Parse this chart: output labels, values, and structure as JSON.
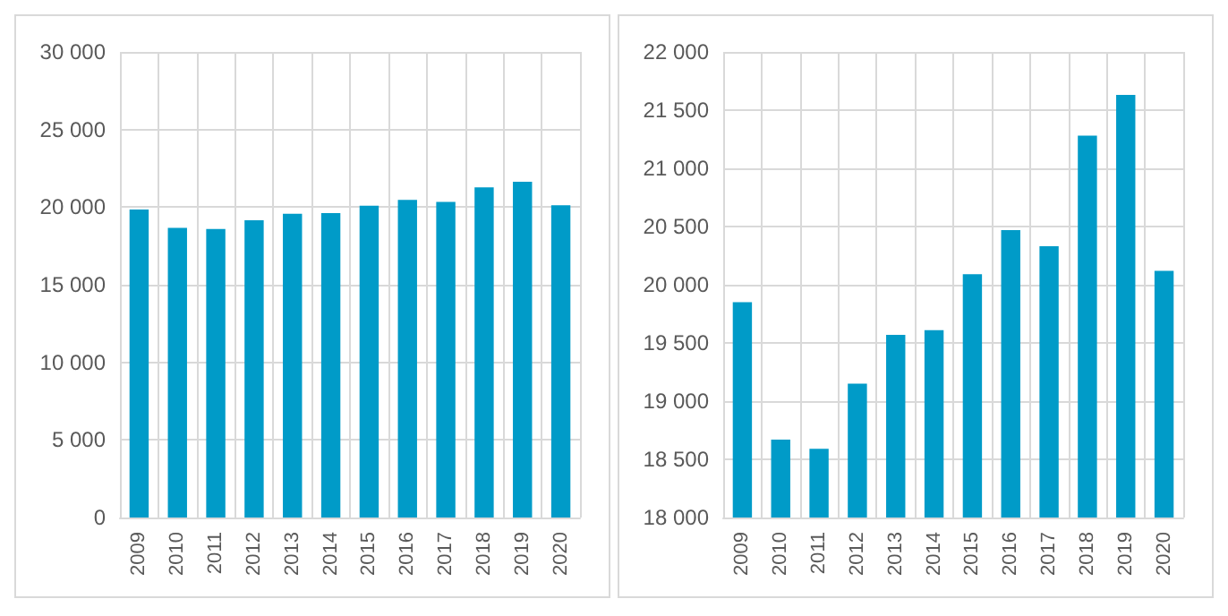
{
  "chart_data": [
    {
      "type": "bar",
      "categories": [
        "2009",
        "2010",
        "2011",
        "2012",
        "2013",
        "2014",
        "2015",
        "2016",
        "2017",
        "2018",
        "2019",
        "2020"
      ],
      "series": [
        {
          "color": "#009bc8",
          "values": [
            19850,
            18670,
            18590,
            19150,
            19570,
            19610,
            20090,
            20470,
            20330,
            21280,
            21630,
            20120
          ]
        }
      ],
      "ylim": [
        0,
        30000
      ],
      "yticks": [
        0,
        {
          "value": 5000,
          "label": "5 000"
        },
        {
          "value": 10000,
          "label": "10 000"
        },
        {
          "value": 15000,
          "label": "15 000"
        },
        {
          "value": 20000,
          "label": "20 000"
        },
        {
          "value": 25000,
          "label": "25 000"
        },
        {
          "value": 30000,
          "label": "30 000"
        }
      ],
      "grid": true
    },
    {
      "type": "bar",
      "categories": [
        "2009",
        "2010",
        "2011",
        "2012",
        "2013",
        "2014",
        "2015",
        "2016",
        "2017",
        "2018",
        "2019",
        "2020"
      ],
      "series": [
        {
          "color": "#009bc8",
          "values": [
            19850,
            18670,
            18590,
            19150,
            19570,
            19610,
            20090,
            20470,
            20330,
            21280,
            21630,
            20120
          ]
        }
      ],
      "ylim": [
        18000,
        22000
      ],
      "yticks": [
        {
          "value": 18000,
          "label": "18 000"
        },
        {
          "value": 18500,
          "label": "18 500"
        },
        {
          "value": 19000,
          "label": "19 000"
        },
        {
          "value": 19500,
          "label": "19 500"
        },
        {
          "value": 20000,
          "label": "20 000"
        },
        {
          "value": 20500,
          "label": "20 500"
        },
        {
          "value": 21000,
          "label": "21 000"
        },
        {
          "value": 21500,
          "label": "21 500"
        },
        {
          "value": 22000,
          "label": "22 000"
        }
      ],
      "grid": true
    }
  ]
}
